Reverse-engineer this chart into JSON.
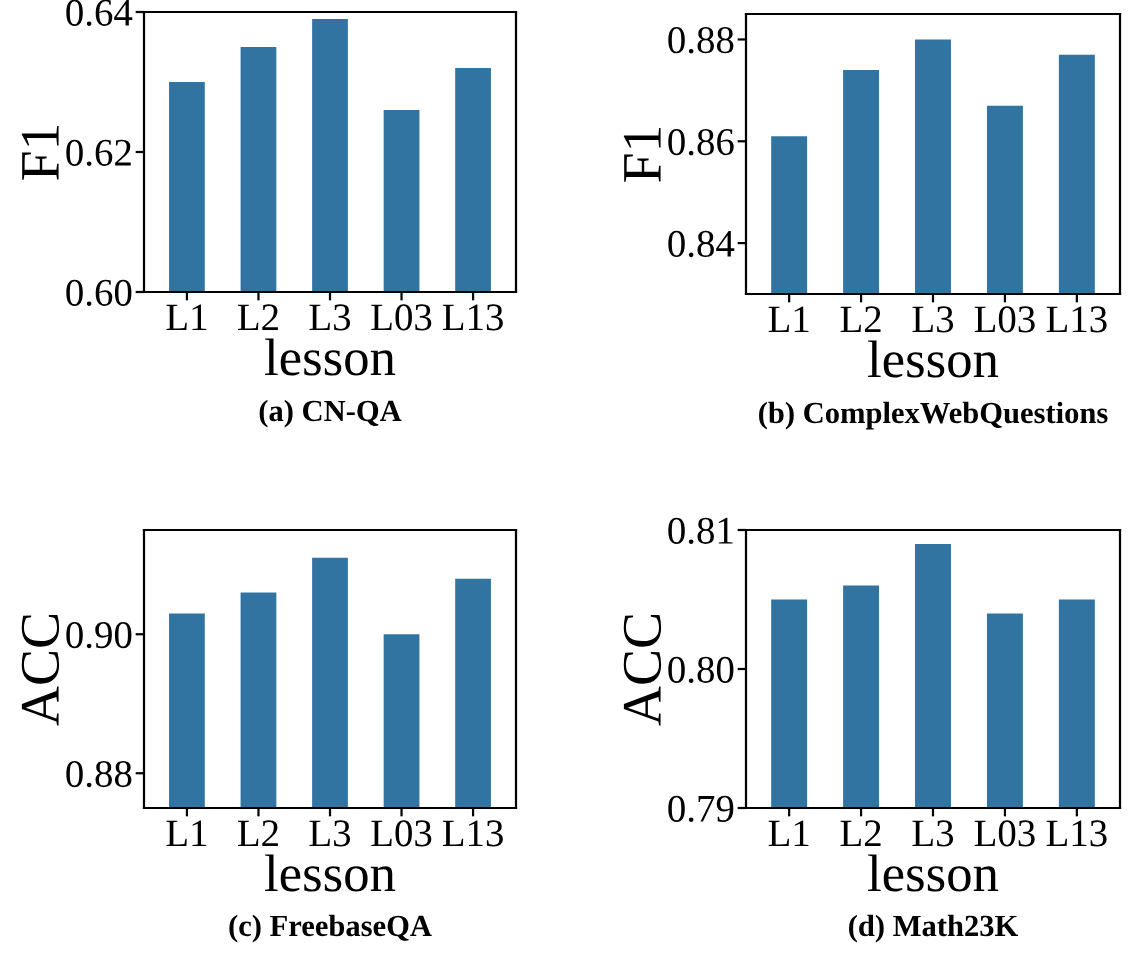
{
  "chart_data": [
    {
      "type": "bar",
      "title": "(a) CN-QA",
      "xlabel": "lesson",
      "ylabel": "F1",
      "categories": [
        "L1",
        "L2",
        "L3",
        "L03",
        "L13"
      ],
      "values": [
        0.63,
        0.635,
        0.639,
        0.626,
        0.632
      ],
      "color": "#3274a1",
      "ylim": [
        0.6,
        0.64
      ],
      "yticks": [
        {
          "value": 0.6,
          "label": "0.60"
        },
        {
          "value": 0.62,
          "label": "0.62"
        },
        {
          "value": 0.64,
          "label": "0.64"
        }
      ],
      "grid": false
    },
    {
      "type": "bar",
      "title": "(b) ComplexWebQuestions",
      "xlabel": "lesson",
      "ylabel": "F1",
      "categories": [
        "L1",
        "L2",
        "L3",
        "L03",
        "L13"
      ],
      "values": [
        0.861,
        0.874,
        0.88,
        0.867,
        0.877
      ],
      "color": "#3274a1",
      "ylim": [
        0.83,
        0.885
      ],
      "yticks": [
        {
          "value": 0.84,
          "label": "0.84"
        },
        {
          "value": 0.86,
          "label": "0.86"
        },
        {
          "value": 0.88,
          "label": "0.88"
        }
      ],
      "grid": false
    },
    {
      "type": "bar",
      "title": "(c) FreebaseQA",
      "xlabel": "lesson",
      "ylabel": "ACC",
      "categories": [
        "L1",
        "L2",
        "L3",
        "L03",
        "L13"
      ],
      "values": [
        0.903,
        0.906,
        0.911,
        0.9,
        0.908
      ],
      "color": "#3274a1",
      "ylim": [
        0.875,
        0.915
      ],
      "yticks": [
        {
          "value": 0.88,
          "label": "0.88"
        },
        {
          "value": 0.9,
          "label": "0.90"
        }
      ],
      "grid": false
    },
    {
      "type": "bar",
      "title": "(d) Math23K",
      "xlabel": "lesson",
      "ylabel": "ACC",
      "categories": [
        "L1",
        "L2",
        "L3",
        "L03",
        "L13"
      ],
      "values": [
        0.805,
        0.806,
        0.809,
        0.804,
        0.805
      ],
      "color": "#3274a1",
      "ylim": [
        0.79,
        0.81
      ],
      "yticks": [
        {
          "value": 0.79,
          "label": "0.79"
        },
        {
          "value": 0.8,
          "label": "0.80"
        },
        {
          "value": 0.81,
          "label": "0.81"
        }
      ],
      "grid": false
    }
  ]
}
